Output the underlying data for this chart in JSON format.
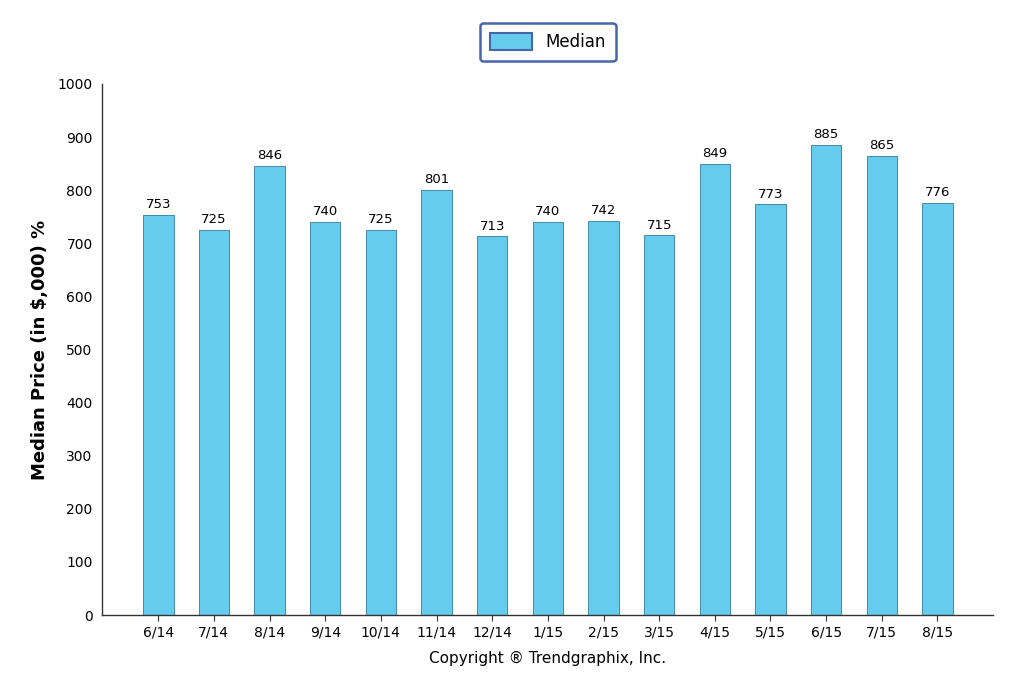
{
  "categories": [
    "6/14",
    "7/14",
    "8/14",
    "9/14",
    "10/14",
    "11/14",
    "12/14",
    "1/15",
    "2/15",
    "3/15",
    "4/15",
    "5/15",
    "6/15",
    "7/15",
    "8/15"
  ],
  "values": [
    753,
    725,
    846,
    740,
    725,
    801,
    713,
    740,
    742,
    715,
    849,
    773,
    885,
    865,
    776
  ],
  "bar_color": "#66CCEE",
  "bar_edge_color": "#4488AA",
  "ylabel": "Median Price (in $,000) %",
  "xlabel": "Copyright ® Trendgraphix, Inc.",
  "ylim": [
    0,
    1000
  ],
  "yticks": [
    0,
    100,
    200,
    300,
    400,
    500,
    600,
    700,
    800,
    900,
    1000
  ],
  "legend_label": "Median",
  "legend_edge_color": "#4466AA",
  "background_color": "#FFFFFF",
  "bar_label_fontsize": 9.5,
  "tick_fontsize": 10,
  "ylabel_fontsize": 13,
  "xlabel_fontsize": 11,
  "bar_width": 0.55
}
